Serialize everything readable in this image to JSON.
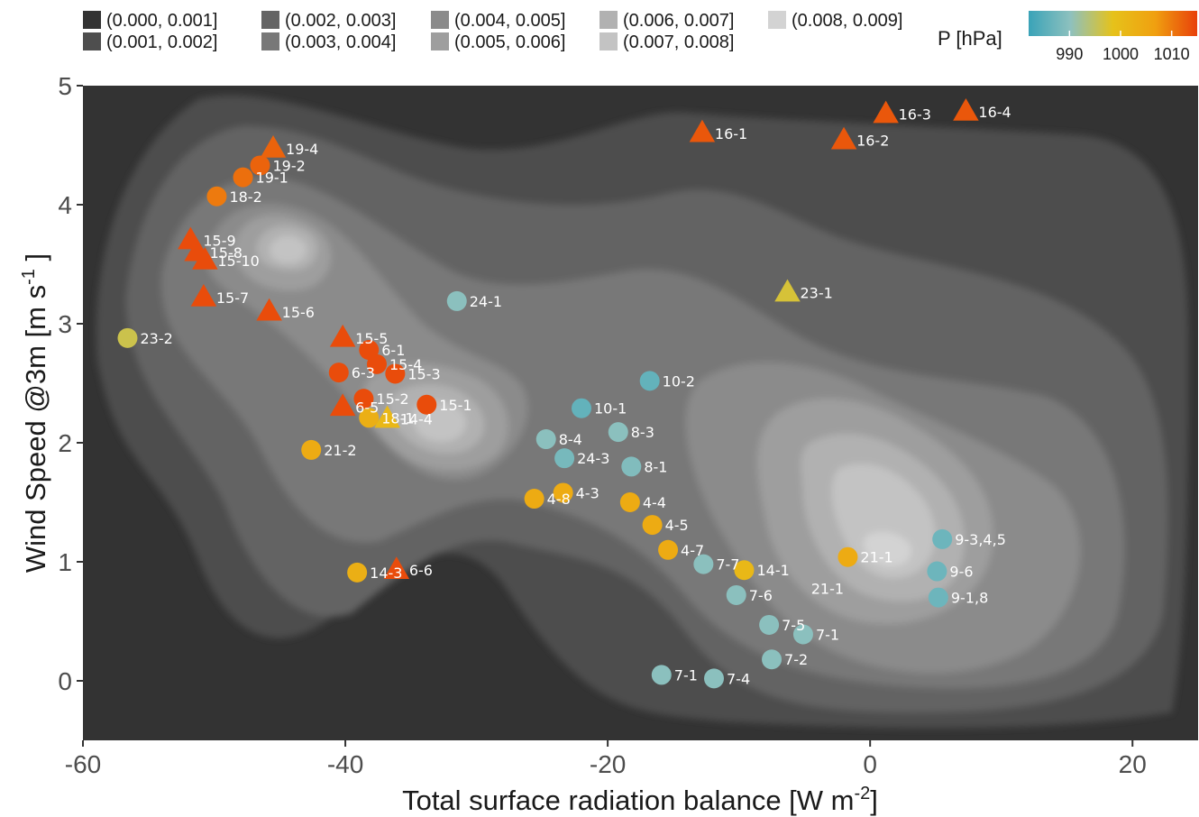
{
  "chart_data": {
    "type": "scatter",
    "xlabel": "Total surface radiation balance [W m",
    "xlabel_sup": "-2",
    "xlabel_end": "]",
    "ylabel": "Wind Speed @3m [m s",
    "ylabel_sup": "-1",
    "ylabel_end": " ]",
    "xlim": [
      -60,
      25
    ],
    "ylim": [
      -0.5,
      5
    ],
    "xticks": [
      -60,
      -40,
      -20,
      0,
      20
    ],
    "yticks": [
      0,
      1,
      2,
      3,
      4,
      5
    ],
    "grid": false,
    "density_legend": {
      "position": "top-left",
      "bins": [
        "(0.000, 0.001]",
        "(0.001, 0.002]",
        "(0.002, 0.003]",
        "(0.003, 0.004]",
        "(0.004, 0.005]",
        "(0.005, 0.006]",
        "(0.006, 0.007]",
        "(0.007, 0.008]",
        "(0.008, 0.009]"
      ],
      "colors": [
        "#333333",
        "#4e4e4e",
        "#646464",
        "#787878",
        "#8b8b8b",
        "#9e9e9e",
        "#b1b1b1",
        "#c3c3c3",
        "#d3d3d3"
      ]
    },
    "colorbar": {
      "title": "P [hPa]",
      "position": "top-right",
      "ticks": [
        990,
        1000,
        1010
      ],
      "range": [
        982,
        1015
      ],
      "colors": [
        "#3aa3b8",
        "#8ec1be",
        "#e6c21a",
        "#f0a010",
        "#e8400a"
      ]
    },
    "points": [
      {
        "label": "19-4",
        "x": -45.5,
        "y": 4.47,
        "shape": "triangle",
        "p": 1012
      },
      {
        "label": "19-2",
        "x": -46.5,
        "y": 4.33,
        "shape": "circle",
        "p": 1012
      },
      {
        "label": "19-1",
        "x": -47.8,
        "y": 4.23,
        "shape": "circle",
        "p": 1011
      },
      {
        "label": "18-2",
        "x": -49.8,
        "y": 4.07,
        "shape": "circle",
        "p": 1010
      },
      {
        "label": "15-9",
        "x": -51.8,
        "y": 3.7,
        "shape": "triangle",
        "p": 1014
      },
      {
        "label": "15-8",
        "x": -51.3,
        "y": 3.6,
        "shape": "triangle",
        "p": 1014
      },
      {
        "label": "15-10",
        "x": -50.7,
        "y": 3.53,
        "shape": "triangle",
        "p": 1014
      },
      {
        "label": "15-7",
        "x": -50.8,
        "y": 3.22,
        "shape": "triangle",
        "p": 1014
      },
      {
        "label": "15-6",
        "x": -45.8,
        "y": 3.1,
        "shape": "triangle",
        "p": 1014
      },
      {
        "label": "15-5",
        "x": -40.2,
        "y": 2.88,
        "shape": "triangle",
        "p": 1014
      },
      {
        "label": "6-1",
        "x": -38.2,
        "y": 2.78,
        "shape": "circle",
        "p": 1014
      },
      {
        "label": "15-4",
        "x": -37.6,
        "y": 2.66,
        "shape": "circle",
        "p": 1014
      },
      {
        "label": "6-3",
        "x": -40.5,
        "y": 2.59,
        "shape": "circle",
        "p": 1014
      },
      {
        "label": "15-3",
        "x": -36.2,
        "y": 2.58,
        "shape": "circle",
        "p": 1014
      },
      {
        "label": "15-2",
        "x": -38.6,
        "y": 2.37,
        "shape": "circle",
        "p": 1014
      },
      {
        "label": "6-5",
        "x": -40.2,
        "y": 2.3,
        "shape": "triangle",
        "p": 1014
      },
      {
        "label": "15-1",
        "x": -33.8,
        "y": 2.32,
        "shape": "circle",
        "p": 1014
      },
      {
        "label": "18-1",
        "x": -38.2,
        "y": 2.21,
        "shape": "circle",
        "p": 1003
      },
      {
        "label": "14-4",
        "x": -36.8,
        "y": 2.2,
        "shape": "triangle",
        "p": 1001
      },
      {
        "label": "21-2",
        "x": -42.6,
        "y": 1.94,
        "shape": "circle",
        "p": 1004
      },
      {
        "label": "14-3",
        "x": -39.1,
        "y": 0.91,
        "shape": "circle",
        "p": 1003
      },
      {
        "label": "6-6",
        "x": -36.1,
        "y": 0.93,
        "shape": "triangle",
        "p": 1014
      },
      {
        "label": "23-2",
        "x": -56.6,
        "y": 2.88,
        "shape": "circle",
        "p": 996
      },
      {
        "label": "24-1",
        "x": -31.5,
        "y": 3.19,
        "shape": "circle",
        "p": 990
      },
      {
        "label": "23-1",
        "x": -6.3,
        "y": 3.26,
        "shape": "triangle",
        "p": 997
      },
      {
        "label": "16-1",
        "x": -12.8,
        "y": 4.6,
        "shape": "triangle",
        "p": 1013
      },
      {
        "label": "16-2",
        "x": -2.0,
        "y": 4.54,
        "shape": "triangle",
        "p": 1013
      },
      {
        "label": "16-3",
        "x": 1.2,
        "y": 4.76,
        "shape": "triangle",
        "p": 1013
      },
      {
        "label": "16-4",
        "x": 7.3,
        "y": 4.78,
        "shape": "triangle",
        "p": 1013
      },
      {
        "label": "10-1",
        "x": -22.0,
        "y": 2.29,
        "shape": "circle",
        "p": 986
      },
      {
        "label": "10-2",
        "x": -16.8,
        "y": 2.52,
        "shape": "circle",
        "p": 986
      },
      {
        "label": "8-4",
        "x": -24.7,
        "y": 2.03,
        "shape": "circle",
        "p": 990
      },
      {
        "label": "8-3",
        "x": -19.2,
        "y": 2.09,
        "shape": "circle",
        "p": 990
      },
      {
        "label": "24-3",
        "x": -23.3,
        "y": 1.87,
        "shape": "circle",
        "p": 988
      },
      {
        "label": "8-1",
        "x": -18.2,
        "y": 1.8,
        "shape": "circle",
        "p": 989
      },
      {
        "label": "4-8",
        "x": -25.6,
        "y": 1.53,
        "shape": "circle",
        "p": 1004
      },
      {
        "label": "4-3",
        "x": -23.4,
        "y": 1.58,
        "shape": "circle",
        "p": 1004
      },
      {
        "label": "4-4",
        "x": -18.3,
        "y": 1.5,
        "shape": "circle",
        "p": 1004
      },
      {
        "label": "4-5",
        "x": -16.6,
        "y": 1.31,
        "shape": "circle",
        "p": 1004
      },
      {
        "label": "4-7",
        "x": -15.4,
        "y": 1.1,
        "shape": "circle",
        "p": 1004
      },
      {
        "label": "7-7",
        "x": -12.7,
        "y": 0.98,
        "shape": "circle",
        "p": 990
      },
      {
        "label": "14-1",
        "x": -9.6,
        "y": 0.93,
        "shape": "circle",
        "p": 1001
      },
      {
        "label": "21-1",
        "x": -1.7,
        "y": 1.04,
        "shape": "circle",
        "p": 1004
      },
      {
        "label": "7-6",
        "x": -10.2,
        "y": 0.72,
        "shape": "circle",
        "p": 990
      },
      {
        "label": "7-5",
        "x": -7.7,
        "y": 0.47,
        "shape": "circle",
        "p": 990
      },
      {
        "label": "7-1",
        "x": -5.1,
        "y": 0.39,
        "shape": "circle",
        "p": 990
      },
      {
        "label": "7-2",
        "x": -7.5,
        "y": 0.18,
        "shape": "circle",
        "p": 990
      },
      {
        "label": "7-1",
        "x": -15.9,
        "y": 0.05,
        "shape": "circle",
        "p": 990
      },
      {
        "label": "7-4",
        "x": -11.9,
        "y": 0.02,
        "shape": "circle",
        "p": 990
      },
      {
        "label": "9-3,4,5",
        "x": 5.5,
        "y": 1.19,
        "shape": "circle",
        "p": 987
      },
      {
        "label": "9-6",
        "x": 5.1,
        "y": 0.92,
        "shape": "circle",
        "p": 987
      },
      {
        "label": "9-1,8",
        "x": 5.2,
        "y": 0.7,
        "shape": "circle",
        "p": 987
      }
    ],
    "annotations": [
      {
        "text": "21-1",
        "x": -2.0,
        "y": 0.73
      }
    ]
  }
}
